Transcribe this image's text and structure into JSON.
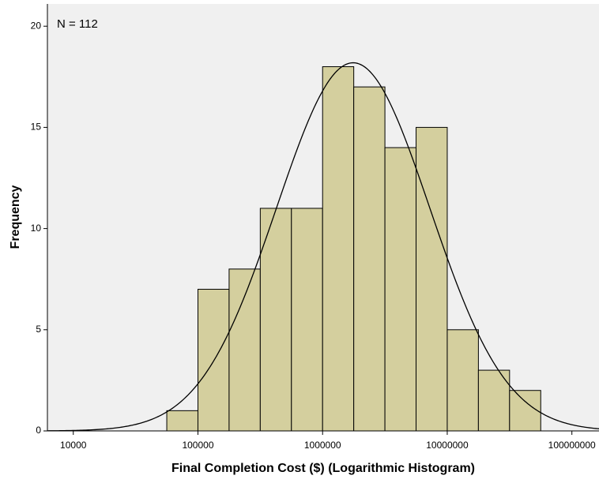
{
  "chart_data": {
    "type": "histogram",
    "xlabel": "Final Completion Cost ($) (Logarithmic Histogram)",
    "ylabel": "Frequency",
    "annotation": "N = 112",
    "xscale": "log",
    "bins": [
      56234,
      100000,
      177828,
      316228,
      562341,
      1000000,
      1778279,
      3162278,
      5623413,
      10000000,
      17782794,
      31622777,
      56234133
    ],
    "values": [
      1,
      7,
      8,
      11,
      11,
      18,
      17,
      14,
      15,
      5,
      3,
      2
    ],
    "color": "#d4cf9e",
    "xlim": [
      6200,
      165000000
    ],
    "xticks": [
      10000,
      100000,
      1000000,
      10000000,
      100000000
    ],
    "ylim": [
      0,
      21.1
    ],
    "yticks": [
      0,
      5,
      10,
      15,
      20
    ],
    "normal_curve": {
      "mean": 6.245,
      "sd": 0.614
    }
  }
}
